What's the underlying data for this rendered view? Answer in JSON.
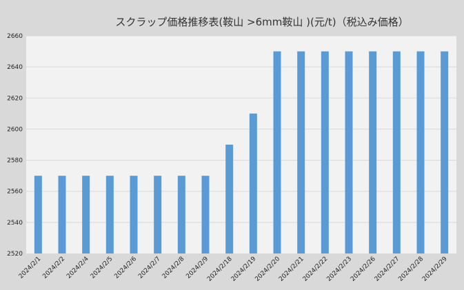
{
  "chart_data": {
    "type": "bar",
    "title": "スクラップ価格推移表(鞍山 >6mm鞍山 )(元/t)（税込み価格）",
    "xlabel": "",
    "ylabel": "",
    "ylim": [
      2520,
      2660
    ],
    "yticks": [
      2520,
      2540,
      2560,
      2580,
      2600,
      2620,
      2640,
      2660
    ],
    "grid": true,
    "legend": "none",
    "bar_color": "#5b9bd5",
    "categories": [
      "2024/2/1",
      "2024/2/2",
      "2024/2/4",
      "2024/2/5",
      "2024/2/6",
      "2024/2/7",
      "2024/2/8",
      "2024/2/9",
      "2024/2/18",
      "2024/2/19",
      "2024/2/20",
      "2024/2/21",
      "2024/2/22",
      "2024/2/23",
      "2024/2/26",
      "2024/2/27",
      "2024/2/28",
      "2024/2/29"
    ],
    "values": [
      2570,
      2570,
      2570,
      2570,
      2570,
      2570,
      2570,
      2570,
      2590,
      2610,
      2650,
      2650,
      2650,
      2650,
      2650,
      2650,
      2650,
      2650
    ]
  }
}
